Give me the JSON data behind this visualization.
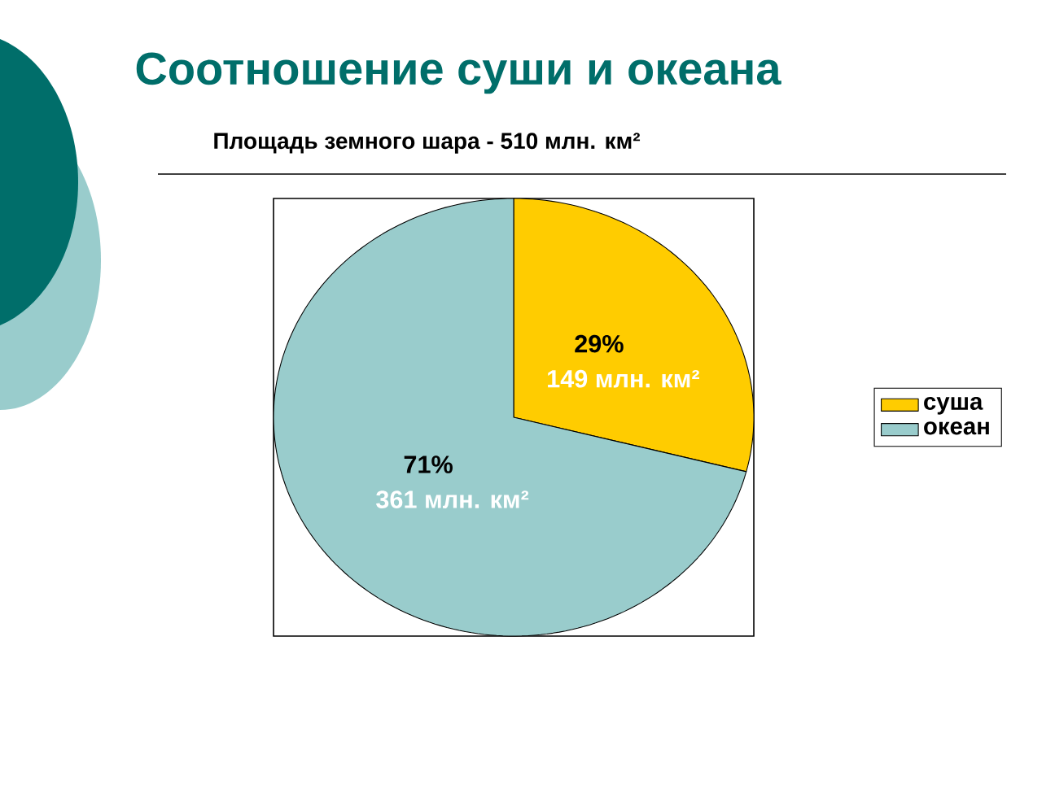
{
  "chart_data": {
    "type": "pie",
    "title": "Соотношение суши и океана",
    "subtitle": "Площадь земного шара - 510 млн. км²",
    "categories": [
      "суша",
      "океан"
    ],
    "values": [
      29,
      71
    ],
    "colors": [
      "#ffcc00",
      "#99cccc"
    ],
    "value_labels": [
      "29%",
      "71%"
    ],
    "annotations": [
      {
        "text": "149 млн. км²",
        "x": "суша"
      },
      {
        "text": "361 млн. км²",
        "x": "океан"
      }
    ],
    "legend": "right"
  }
}
